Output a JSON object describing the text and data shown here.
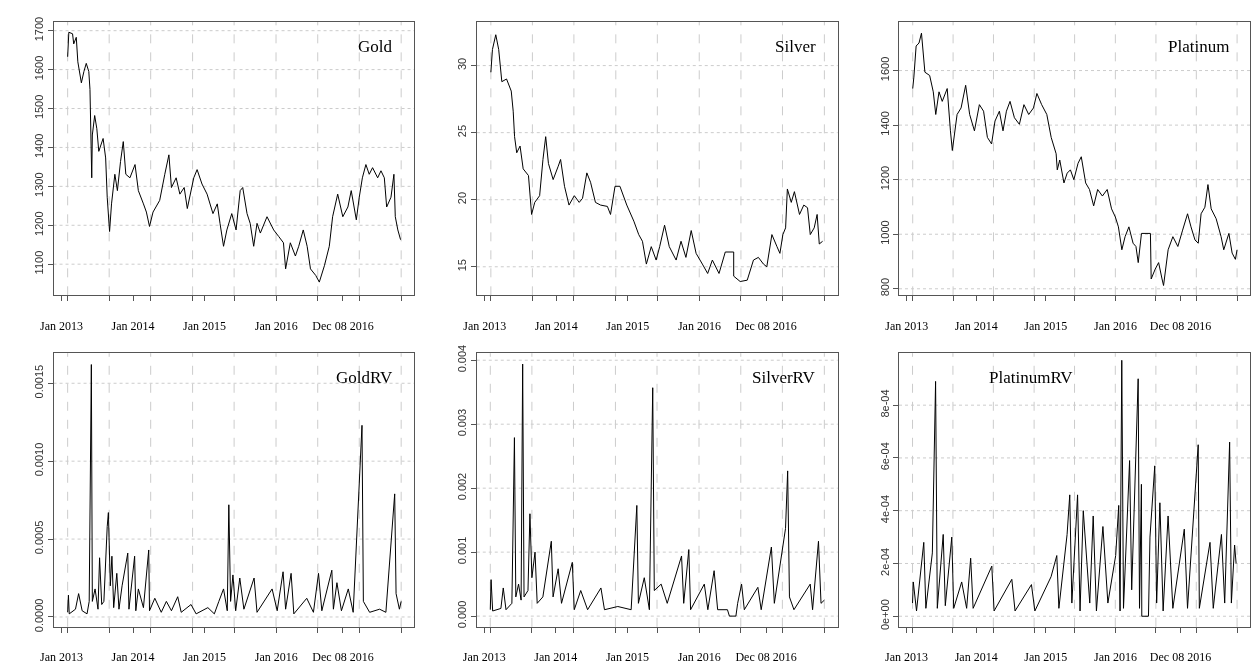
{
  "chart_data": [
    {
      "type": "line",
      "title": "Gold",
      "grid": true,
      "xlim": [
        "2012-11-21",
        "2017-12-08"
      ],
      "ylim": [
        1020,
        1723
      ],
      "xticks": [
        {
          "value": "2013-02-01",
          "label": null
        },
        {
          "value": "2013-09-01",
          "label": null
        },
        {
          "value": "2014-04-01",
          "label": null
        },
        {
          "value": "2014-11-01",
          "label": null
        },
        {
          "value": "2015-06-01",
          "label": null
        },
        {
          "value": "2016-01-01",
          "label": null
        },
        {
          "value": "2016-08-01",
          "label": null
        },
        {
          "value": "2017-03-01",
          "label": null
        },
        {
          "value": "2017-10-01",
          "label": null
        },
        {
          "value": "2013-01-01",
          "label": "Jan 2013"
        },
        {
          "value": "2014-01-01",
          "label": "Jan 2014"
        },
        {
          "value": "2015-01-01",
          "label": "Jan 2015"
        },
        {
          "value": "2016-01-02",
          "label": "Jan 2016"
        },
        {
          "value": "2016-12-08",
          "label": "Dec 08 2016"
        }
      ],
      "yticks": [
        1100,
        1200,
        1300,
        1400,
        1500,
        1600,
        1700
      ],
      "x": [
        "2013-02-01",
        "2013-02-07",
        "2013-02-26",
        "2013-03-04",
        "2013-03-17",
        "2013-03-25",
        "2013-04-12",
        "2013-04-25",
        "2013-05-07",
        "2013-05-20",
        "2013-05-26",
        "2013-06-04",
        "2013-06-07",
        "2013-06-19",
        "2013-06-30",
        "2013-07-10",
        "2013-08-01",
        "2013-08-14",
        "2013-08-22",
        "2013-09-03",
        "2013-09-13",
        "2013-09-30",
        "2013-10-13",
        "2013-10-29",
        "2013-11-12",
        "2013-11-25",
        "2013-12-16",
        "2014-01-11",
        "2014-01-28",
        "2014-02-23",
        "2014-03-10",
        "2014-03-26",
        "2014-04-13",
        "2014-05-17",
        "2014-06-12",
        "2014-07-03",
        "2014-07-16",
        "2014-08-09",
        "2014-08-28",
        "2014-09-19",
        "2014-10-05",
        "2014-11-07",
        "2014-11-24",
        "2014-12-19",
        "2015-01-14",
        "2015-02-13",
        "2015-03-07",
        "2015-03-21",
        "2015-04-08",
        "2015-04-25",
        "2015-05-20",
        "2015-06-11",
        "2015-07-02",
        "2015-07-15",
        "2015-08-06",
        "2015-08-22",
        "2015-09-09",
        "2015-09-26",
        "2015-10-13",
        "2015-11-16",
        "2015-12-20",
        "2016-01-15",
        "2016-02-08",
        "2016-02-19",
        "2016-03-14",
        "2016-04-09",
        "2016-04-26",
        "2016-05-19",
        "2016-06-08",
        "2016-06-25",
        "2016-07-22",
        "2016-08-09",
        "2016-09-04",
        "2016-09-29",
        "2016-10-16",
        "2016-11-11",
        "2016-12-07",
        "2017-01-02",
        "2017-01-19",
        "2017-02-14",
        "2017-03-01",
        "2017-03-17",
        "2017-04-04",
        "2017-04-21",
        "2017-05-08",
        "2017-06-03",
        "2017-06-20",
        "2017-07-07",
        "2017-07-19",
        "2017-08-10",
        "2017-08-25",
        "2017-09-01",
        "2017-09-14",
        "2017-09-28"
      ],
      "series": [
        {
          "color": "#000000",
          "values": [
            1633,
            1696,
            1692,
            1666,
            1683,
            1620,
            1566,
            1595,
            1616,
            1595,
            1549,
            1322,
            1432,
            1482,
            1448,
            1390,
            1423,
            1373,
            1272,
            1184,
            1255,
            1331,
            1289,
            1364,
            1415,
            1331,
            1322,
            1356,
            1289,
            1255,
            1234,
            1197,
            1234,
            1264,
            1331,
            1381,
            1297,
            1322,
            1280,
            1297,
            1243,
            1322,
            1343,
            1306,
            1280,
            1230,
            1255,
            1205,
            1146,
            1188,
            1230,
            1188,
            1289,
            1297,
            1230,
            1205,
            1146,
            1205,
            1180,
            1222,
            1188,
            1171,
            1155,
            1088,
            1155,
            1121,
            1146,
            1188,
            1146,
            1088,
            1071,
            1054,
            1096,
            1146,
            1222,
            1280,
            1222,
            1247,
            1289,
            1214,
            1272,
            1322,
            1356,
            1331,
            1348,
            1322,
            1340,
            1322,
            1247,
            1272,
            1331,
            1222,
            1188,
            1163
          ]
        }
      ]
    },
    {
      "type": "line",
      "title": "Silver",
      "grid": true,
      "xlim": [
        "2012-11-21",
        "2017-12-08"
      ],
      "ylim": [
        12.87,
        33.27
      ],
      "xticks": [
        {
          "value": "2013-02-01",
          "label": null
        },
        {
          "value": "2013-09-01",
          "label": null
        },
        {
          "value": "2014-04-01",
          "label": null
        },
        {
          "value": "2014-11-01",
          "label": null
        },
        {
          "value": "2015-06-01",
          "label": null
        },
        {
          "value": "2016-01-01",
          "label": null
        },
        {
          "value": "2016-08-01",
          "label": null
        },
        {
          "value": "2017-03-01",
          "label": null
        },
        {
          "value": "2017-10-01",
          "label": null
        },
        {
          "value": "2013-01-01",
          "label": "Jan 2013"
        },
        {
          "value": "2014-01-01",
          "label": "Jan 2014"
        },
        {
          "value": "2015-01-01",
          "label": "Jan 2015"
        },
        {
          "value": "2016-01-02",
          "label": "Jan 2016"
        },
        {
          "value": "2016-12-08",
          "label": "Dec 08 2016"
        }
      ],
      "yticks": [
        15,
        20,
        25,
        30
      ],
      "x": [
        "2013-02-01",
        "2013-02-09",
        "2013-02-26",
        "2013-03-13",
        "2013-03-29",
        "2013-04-22",
        "2013-05-16",
        "2013-05-26",
        "2013-06-02",
        "2013-06-13",
        "2013-06-30",
        "2013-07-16",
        "2013-08-12",
        "2013-08-28",
        "2013-09-13",
        "2013-10-08",
        "2013-10-25",
        "2013-11-08",
        "2013-11-22",
        "2013-12-16",
        "2014-01-11",
        "2014-01-23",
        "2014-02-12",
        "2014-03-07",
        "2014-04-03",
        "2014-04-28",
        "2014-05-15",
        "2014-06-06",
        "2014-06-25",
        "2014-07-20",
        "2014-08-15",
        "2014-09-19",
        "2014-10-05",
        "2014-10-28",
        "2014-11-22",
        "2014-12-27",
        "2015-02-01",
        "2015-02-26",
        "2015-03-17",
        "2015-04-06",
        "2015-05-01",
        "2015-05-26",
        "2015-06-13",
        "2015-07-08",
        "2015-08-01",
        "2015-09-05",
        "2015-09-30",
        "2015-10-25",
        "2015-11-21",
        "2015-12-16",
        "2016-01-17",
        "2016-02-13",
        "2016-03-08",
        "2016-04-11",
        "2016-05-13",
        "2016-06-25",
        "2016-06-25",
        "2016-07-28",
        "2016-09-02",
        "2016-10-04",
        "2016-10-29",
        "2016-11-24",
        "2016-12-11",
        "2017-01-06",
        "2017-02-01",
        "2017-02-16",
        "2017-03-03",
        "2017-03-17",
        "2017-03-26",
        "2017-04-15",
        "2017-05-01",
        "2017-05-27",
        "2017-06-18",
        "2017-07-07",
        "2017-07-21",
        "2017-08-10",
        "2017-08-25",
        "2017-09-05",
        "2017-09-22"
      ],
      "series": [
        {
          "color": "#000000",
          "values": [
            29.5,
            31.2,
            32.3,
            31.2,
            28.8,
            29.0,
            28.1,
            26.6,
            24.7,
            23.5,
            24.0,
            22.3,
            21.8,
            18.9,
            19.8,
            20.3,
            23.0,
            24.7,
            22.7,
            21.5,
            22.5,
            23.0,
            21.0,
            19.6,
            20.3,
            19.8,
            20.1,
            22.0,
            21.3,
            19.8,
            19.6,
            19.5,
            18.9,
            21.0,
            21.0,
            19.6,
            18.4,
            17.4,
            16.9,
            15.2,
            16.5,
            15.5,
            16.5,
            18.1,
            16.5,
            15.5,
            16.9,
            15.7,
            17.7,
            16.0,
            15.2,
            14.5,
            15.5,
            14.5,
            16.1,
            16.1,
            14.3,
            13.9,
            14.0,
            15.5,
            15.7,
            15.2,
            15.0,
            17.4,
            16.5,
            16.0,
            17.4,
            17.9,
            20.8,
            19.8,
            20.6,
            18.9,
            19.6,
            19.4,
            17.4,
            17.9,
            18.9,
            16.7,
            16.9
          ]
        }
      ]
    },
    {
      "type": "line",
      "title": "Platinum",
      "grid": true,
      "xlim": [
        "2012-11-21",
        "2017-12-08"
      ],
      "ylim": [
        776,
        1779
      ],
      "xticks": [
        {
          "value": "2013-02-01",
          "label": null
        },
        {
          "value": "2013-09-01",
          "label": null
        },
        {
          "value": "2014-04-01",
          "label": null
        },
        {
          "value": "2014-11-01",
          "label": null
        },
        {
          "value": "2015-06-01",
          "label": null
        },
        {
          "value": "2016-01-01",
          "label": null
        },
        {
          "value": "2016-08-01",
          "label": null
        },
        {
          "value": "2017-03-01",
          "label": null
        },
        {
          "value": "2017-10-01",
          "label": null
        },
        {
          "value": "2013-01-01",
          "label": "Jan 2013"
        },
        {
          "value": "2014-01-01",
          "label": "Jan 2014"
        },
        {
          "value": "2015-01-01",
          "label": "Jan 2015"
        },
        {
          "value": "2016-01-02",
          "label": "Jan 2016"
        },
        {
          "value": "2016-12-08",
          "label": "Dec 08 2016"
        }
      ],
      "yticks": [
        800,
        1000,
        1200,
        1400,
        1600
      ],
      "x": [
        "2013-02-01",
        "2013-02-07",
        "2013-02-19",
        "2013-03-06",
        "2013-03-19",
        "2013-04-06",
        "2013-05-01",
        "2013-05-20",
        "2013-06-02",
        "2013-06-19",
        "2013-07-06",
        "2013-08-01",
        "2013-08-18",
        "2013-08-28",
        "2013-09-22",
        "2013-10-13",
        "2013-11-06",
        "2013-11-27",
        "2013-12-22",
        "2014-01-17",
        "2014-02-08",
        "2014-02-28",
        "2014-03-22",
        "2014-04-09",
        "2014-05-02",
        "2014-05-21",
        "2014-06-08",
        "2014-06-27",
        "2014-07-20",
        "2014-08-15",
        "2014-09-08",
        "2014-10-03",
        "2014-10-28",
        "2014-11-15",
        "2014-12-10",
        "2015-01-06",
        "2015-01-29",
        "2015-02-24",
        "2015-03-02",
        "2015-03-15",
        "2015-04-06",
        "2015-04-23",
        "2015-05-10",
        "2015-05-28",
        "2015-06-19",
        "2015-07-06",
        "2015-07-29",
        "2015-08-18",
        "2015-09-09",
        "2015-09-30",
        "2015-10-25",
        "2015-11-19",
        "2015-12-12",
        "2016-01-01",
        "2016-01-17",
        "2016-02-04",
        "2016-02-21",
        "2016-03-12",
        "2016-04-03",
        "2016-04-18",
        "2016-04-30",
        "2016-05-17",
        "2016-07-03",
        "2016-07-07",
        "2016-07-28",
        "2016-08-15",
        "2016-09-02",
        "2016-09-10",
        "2016-10-04",
        "2016-10-29",
        "2016-11-24",
        "2016-12-19",
        "2017-01-14",
        "2017-02-01",
        "2017-02-22",
        "2017-03-11",
        "2017-03-26",
        "2017-04-15",
        "2017-05-01",
        "2017-05-18",
        "2017-06-13",
        "2017-07-09",
        "2017-07-23",
        "2017-08-19",
        "2017-09-05",
        "2017-09-22",
        "2017-10-01"
      ],
      "series": [
        {
          "color": "#000000",
          "values": [
            1534,
            1576,
            1690,
            1701,
            1737,
            1594,
            1582,
            1522,
            1439,
            1522,
            1487,
            1534,
            1379,
            1307,
            1439,
            1463,
            1546,
            1439,
            1379,
            1475,
            1451,
            1355,
            1331,
            1415,
            1451,
            1379,
            1451,
            1487,
            1427,
            1403,
            1475,
            1439,
            1463,
            1516,
            1475,
            1439,
            1355,
            1295,
            1236,
            1272,
            1188,
            1224,
            1236,
            1200,
            1260,
            1284,
            1188,
            1164,
            1104,
            1164,
            1140,
            1164,
            1093,
            1063,
            1027,
            943,
            991,
            1027,
            967,
            955,
            896,
            1003,
            1003,
            836,
            872,
            896,
            836,
            812,
            943,
            991,
            955,
            1015,
            1075,
            1027,
            979,
            967,
            1075,
            1099,
            1182,
            1093,
            1057,
            991,
            943,
            1003,
            931,
            908,
            943
          ]
        }
      ]
    },
    {
      "type": "line",
      "title": "GoldRV",
      "grid": true,
      "xlim": [
        "2012-11-21",
        "2017-12-08"
      ],
      "ylim": [
        -6.3e-05,
        0.001693
      ],
      "xticks": [
        {
          "value": "2013-02-01",
          "label": null
        },
        {
          "value": "2013-09-01",
          "label": null
        },
        {
          "value": "2014-04-01",
          "label": null
        },
        {
          "value": "2014-11-01",
          "label": null
        },
        {
          "value": "2015-06-01",
          "label": null
        },
        {
          "value": "2016-01-01",
          "label": null
        },
        {
          "value": "2016-08-01",
          "label": null
        },
        {
          "value": "2017-03-01",
          "label": null
        },
        {
          "value": "2017-10-01",
          "label": null
        },
        {
          "value": "2013-01-01",
          "label": "Jan 2013"
        },
        {
          "value": "2014-01-01",
          "label": "Jan 2014"
        },
        {
          "value": "2015-01-01",
          "label": "Jan 2015"
        },
        {
          "value": "2016-01-02",
          "label": "Jan 2016"
        },
        {
          "value": "2016-12-08",
          "label": "Dec 08 2016"
        }
      ],
      "yticks": [
        {
          "value": 0,
          "label": "0.0000"
        },
        {
          "value": 0.0005,
          "label": "0.0005"
        },
        {
          "value": 0.001,
          "label": "0.0010"
        },
        {
          "value": 0.0015,
          "label": "0.0015"
        }
      ],
      "x": [
        "2013-02-01",
        "2013-02-05",
        "2013-02-09",
        "2013-03-13",
        "2013-03-29",
        "2013-04-16",
        "2013-05-11",
        "2013-05-22",
        "2013-06-02",
        "2013-06-07",
        "2013-06-21",
        "2013-07-06",
        "2013-07-14",
        "2013-07-25",
        "2013-08-05",
        "2013-08-22",
        "2013-08-28",
        "2013-09-07",
        "2013-09-15",
        "2013-09-24",
        "2013-10-10",
        "2013-10-21",
        "2013-11-06",
        "2013-12-05",
        "2013-12-11",
        "2014-01-09",
        "2014-01-15",
        "2014-01-28",
        "2014-02-23",
        "2014-03-22",
        "2014-03-26",
        "2014-04-22",
        "2014-05-25",
        "2014-06-20",
        "2014-07-16",
        "2014-08-17",
        "2014-09-04",
        "2014-10-24",
        "2014-11-19",
        "2015-01-18",
        "2015-02-20",
        "2015-03-15",
        "2015-04-08",
        "2015-04-27",
        "2015-05-05",
        "2015-05-14",
        "2015-05-26",
        "2015-06-09",
        "2015-06-30",
        "2015-07-21",
        "2015-09-11",
        "2015-09-26",
        "2015-12-12",
        "2016-01-07",
        "2016-02-06",
        "2016-02-19",
        "2016-03-18",
        "2016-04-01",
        "2016-06-06",
        "2016-07-10",
        "2016-08-05",
        "2016-08-22",
        "2016-10-12",
        "2016-10-20",
        "2016-11-07",
        "2016-11-30",
        "2017-01-04",
        "2017-01-29",
        "2017-03-15",
        "2017-03-22",
        "2017-04-23",
        "2017-06-13",
        "2017-07-15",
        "2017-08-29",
        "2017-09-05",
        "2017-09-22",
        "2017-10-01"
      ],
      "series": [
        {
          "color": "#000000",
          "values": [
            3e-05,
            0.00014,
            2e-05,
            5e-05,
            0.00015,
            4e-05,
            2e-05,
            0.0001,
            0.00162,
            0.0001,
            0.00018,
            5e-05,
            0.00038,
            8e-05,
            0.0001,
            0.00058,
            0.00067,
            0.0002,
            0.00039,
            6e-05,
            0.00028,
            5e-05,
            0.0002,
            0.00041,
            5e-05,
            0.00039,
            4e-05,
            0.00018,
            6e-05,
            0.00043,
            4e-05,
            0.00012,
            3e-05,
            0.0001,
            4e-05,
            0.00013,
            3e-05,
            8e-05,
            2e-05,
            6e-05,
            2e-05,
            0.0001,
            0.00018,
            4e-05,
            0.00072,
            0.0001,
            0.00027,
            4e-05,
            0.00025,
            5e-05,
            0.00025,
            3e-05,
            0.00018,
            4e-05,
            0.00029,
            5e-05,
            0.00028,
            2e-05,
            0.00012,
            3e-05,
            0.00028,
            4e-05,
            0.0003,
            5e-05,
            0.00022,
            4e-05,
            0.00018,
            3e-05,
            0.00123,
            0.0001,
            3e-05,
            5e-05,
            3e-05,
            0.00079,
            0.00015,
            5e-05,
            0.0001
          ]
        }
      ]
    },
    {
      "type": "line",
      "title": "SilverRV",
      "grid": true,
      "xlim": [
        "2012-11-24",
        "2017-12-08"
      ],
      "ylim": [
        -0.000167,
        0.00411
      ],
      "xticks": [
        {
          "value": "2013-02-01",
          "label": null
        },
        {
          "value": "2013-09-01",
          "label": null
        },
        {
          "value": "2014-04-01",
          "label": null
        },
        {
          "value": "2014-11-01",
          "label": null
        },
        {
          "value": "2015-06-01",
          "label": null
        },
        {
          "value": "2016-01-01",
          "label": null
        },
        {
          "value": "2016-08-01",
          "label": null
        },
        {
          "value": "2017-03-01",
          "label": null
        },
        {
          "value": "2017-10-01",
          "label": null
        },
        {
          "value": "2013-01-01",
          "label": "Jan 2013"
        },
        {
          "value": "2014-01-01",
          "label": "Jan 2014"
        },
        {
          "value": "2015-01-01",
          "label": "Jan 2015"
        },
        {
          "value": "2016-01-02",
          "label": "Jan 2016"
        },
        {
          "value": "2016-12-08",
          "label": "Dec 08 2016"
        }
      ],
      "yticks": [
        {
          "value": 0,
          "label": "0.000"
        },
        {
          "value": 0.001,
          "label": "0.001"
        },
        {
          "value": 0.002,
          "label": "0.002"
        },
        {
          "value": 0.003,
          "label": "0.003"
        },
        {
          "value": 0.004,
          "label": "0.004"
        }
      ],
      "x": [
        "2013-02-01",
        "2013-02-05",
        "2013-02-13",
        "2013-03-27",
        "2013-04-08",
        "2013-04-22",
        "2013-05-22",
        "2013-06-04",
        "2013-06-11",
        "2013-06-25",
        "2013-07-08",
        "2013-07-16",
        "2013-07-23",
        "2013-08-12",
        "2013-08-22",
        "2013-09-01",
        "2013-09-17",
        "2013-09-28",
        "2013-10-27",
        "2013-12-09",
        "2013-12-18",
        "2014-01-13",
        "2014-01-30",
        "2014-03-26",
        "2014-04-05",
        "2014-05-08",
        "2014-06-12",
        "2014-08-19",
        "2014-09-06",
        "2014-11-13",
        "2015-01-20",
        "2015-02-18",
        "2015-02-26",
        "2015-03-28",
        "2015-04-23",
        "2015-05-10",
        "2015-05-18",
        "2015-06-22",
        "2015-07-23",
        "2015-10-04",
        "2015-10-15",
        "2015-11-10",
        "2015-11-19",
        "2016-01-28",
        "2016-02-15",
        "2016-03-18",
        "2016-04-05",
        "2016-05-25",
        "2016-06-04",
        "2016-07-07",
        "2016-07-16",
        "2016-08-05",
        "2016-08-19",
        "2016-10-27",
        "2016-11-13",
        "2017-01-04",
        "2017-01-19",
        "2017-03-17",
        "2017-03-28",
        "2017-04-06",
        "2017-04-29",
        "2017-07-21",
        "2017-08-02",
        "2017-09-01",
        "2017-09-14",
        "2017-10-01"
      ],
      "series": [
        {
          "color": "#000000",
          "values": [
            0.0001,
            0.00057,
            8e-05,
            0.00012,
            0.00044,
            0.0001,
            0.0002,
            0.00279,
            0.0003,
            0.0005,
            0.00025,
            0.00394,
            0.0003,
            0.0004,
            0.0016,
            0.0006,
            0.001,
            0.0002,
            0.0003,
            0.00117,
            0.0003,
            0.00074,
            0.0002,
            0.00084,
            0.0001,
            0.0004,
            0.0001,
            0.00044,
            0.0001,
            0.00015,
            0.0001,
            0.00173,
            0.0002,
            0.0006,
            0.0001,
            0.00357,
            0.0004,
            0.0005,
            0.0002,
            0.00094,
            0.0002,
            0.00104,
            0.0001,
            0.0005,
            0.0001,
            0.00071,
            0.0001,
            0.0001,
            0,
            0,
            0.0002,
            0.0005,
            0.0001,
            0.00045,
            0.0001,
            0.00108,
            0.0002,
            0.00137,
            0.00227,
            0.0003,
            0.0001,
            0.0005,
            0.0001,
            0.00117,
            0.0002,
            0.00025
          ]
        }
      ]
    },
    {
      "type": "line",
      "title": "PlatinumRV",
      "grid": true,
      "xlim": [
        "2012-11-22",
        "2017-12-08"
      ],
      "ylim": [
        -4e-05,
        0.000997
      ],
      "xticks": [
        {
          "value": "2013-02-01",
          "label": null
        },
        {
          "value": "2013-09-01",
          "label": null
        },
        {
          "value": "2014-04-01",
          "label": null
        },
        {
          "value": "2014-11-01",
          "label": null
        },
        {
          "value": "2015-06-01",
          "label": null
        },
        {
          "value": "2016-01-01",
          "label": null
        },
        {
          "value": "2016-08-01",
          "label": null
        },
        {
          "value": "2017-03-01",
          "label": null
        },
        {
          "value": "2017-10-01",
          "label": null
        },
        {
          "value": "2013-01-01",
          "label": "Jan 2013"
        },
        {
          "value": "2014-01-01",
          "label": "Jan 2014"
        },
        {
          "value": "2015-01-01",
          "label": "Jan 2015"
        },
        {
          "value": "2016-01-02",
          "label": "Jan 2016"
        },
        {
          "value": "2016-12-08",
          "label": "Dec 08 2016"
        }
      ],
      "yticks": [
        {
          "value": 0,
          "label": "0e+00"
        },
        {
          "value": 0.0002,
          "label": "2e-04"
        },
        {
          "value": 0.0004,
          "label": "4e-04"
        },
        {
          "value": 0.0006,
          "label": "6e-04"
        },
        {
          "value": 0.0008,
          "label": "8e-04"
        }
      ],
      "x": [
        "2013-02-01",
        "2013-02-05",
        "2013-02-22",
        "2013-04-01",
        "2013-04-12",
        "2013-05-16",
        "2013-06-02",
        "2013-06-11",
        "2013-07-12",
        "2013-07-23",
        "2013-08-26",
        "2013-09-05",
        "2013-10-17",
        "2013-11-12",
        "2013-12-03",
        "2013-12-16",
        "2014-03-24",
        "2014-04-05",
        "2014-07-07",
        "2014-07-24",
        "2014-10-18",
        "2014-11-05",
        "2015-01-29",
        "2015-02-28",
        "2015-03-11",
        "2015-04-23",
        "2015-05-07",
        "2015-05-18",
        "2015-06-17",
        "2015-06-30",
        "2015-07-17",
        "2015-08-20",
        "2015-09-07",
        "2015-09-24",
        "2015-10-28",
        "2015-11-23",
        "2016-01-03",
        "2016-01-19",
        "2016-01-26",
        "2016-02-04",
        "2016-02-13",
        "2016-03-16",
        "2016-03-27",
        "2016-04-30",
        "2016-05-07",
        "2016-05-17",
        "2016-05-19",
        "2016-06-23",
        "2016-07-01",
        "2016-07-26",
        "2016-08-05",
        "2016-08-22",
        "2016-09-08",
        "2016-10-04",
        "2016-10-29",
        "2016-12-28",
        "2017-01-14",
        "2017-03-11",
        "2017-03-17",
        "2017-05-12",
        "2017-05-29",
        "2017-07-11",
        "2017-07-28",
        "2017-08-23",
        "2017-09-01",
        "2017-09-18",
        "2017-09-26"
      ],
      "series": [
        {
          "color": "#000000",
          "values": [
            5e-05,
            0.00013,
            2e-05,
            0.00028,
            3e-05,
            0.00024,
            0.00089,
            3e-05,
            0.00031,
            4e-05,
            0.0003,
            3e-05,
            0.00013,
            3e-05,
            0.00022,
            3e-05,
            0.00019,
            2e-05,
            0.00014,
            2e-05,
            0.00012,
            2e-05,
            0.00015,
            0.00023,
            3e-05,
            0.00031,
            0.00046,
            5e-05,
            0.00046,
            2e-05,
            0.0004,
            5e-05,
            0.00038,
            2e-05,
            0.00034,
            5e-05,
            0.00023,
            0.00042,
            2e-05,
            0.00097,
            3e-05,
            0.00059,
            0.0001,
            0.0009,
            3e-05,
            0.0005,
            0,
            0,
            0.0003,
            0.00057,
            5e-05,
            0.00043,
            2e-05,
            0.00038,
            3e-05,
            0.00033,
            3e-05,
            0.00065,
            3e-05,
            0.00028,
            3e-05,
            0.00031,
            5e-05,
            0.00066,
            5e-05,
            0.00027,
            0.0002
          ]
        }
      ]
    }
  ]
}
